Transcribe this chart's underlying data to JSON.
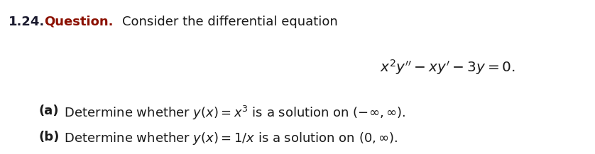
{
  "background_color": "#ffffff",
  "fig_width": 8.38,
  "fig_height": 2.18,
  "dpi": 100,
  "number_color": "#1a1a2e",
  "question_color": "#8B1000",
  "text_color": "#1a1a1a",
  "label_prefix": "1.24.",
  "label_word": "Question.",
  "intro_text": "Consider the differential equation",
  "equation": "$x^2y^{\\prime\\prime} - xy^{\\prime} - 3y = 0.$",
  "part_a_bold": "(a)",
  "part_a_text": " Determine whether $y(x) = x^3$ is a solution on $(-\\infty, \\infty)$.",
  "part_b_bold": "(b)",
  "part_b_text": " Determine whether $y(x) = 1/x$ is a solution on $(0, \\infty)$.",
  "fontsize": 13.0,
  "eq_fontsize": 14.5
}
